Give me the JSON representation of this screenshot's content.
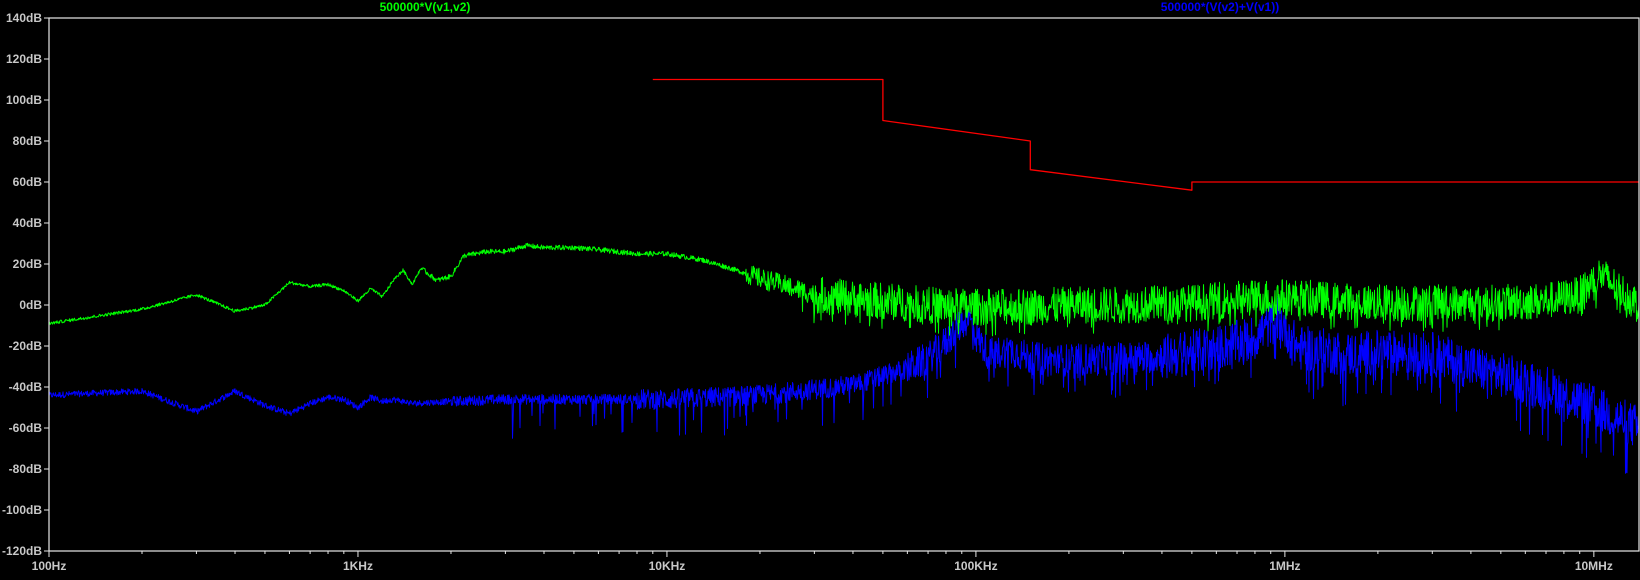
{
  "chart_data": {
    "type": "line",
    "x_scale": "log",
    "x_unit": "Hz",
    "y_unit": "dB",
    "xlim": [
      100,
      14000000
    ],
    "ylim": [
      -120,
      140
    ],
    "x_ticks": [
      {
        "value": 100,
        "label": "100Hz"
      },
      {
        "value": 1000,
        "label": "1KHz"
      },
      {
        "value": 10000,
        "label": "10KHz"
      },
      {
        "value": 100000,
        "label": "100KHz"
      },
      {
        "value": 1000000,
        "label": "1MHz"
      },
      {
        "value": 10000000,
        "label": "10MHz"
      }
    ],
    "y_ticks": [
      {
        "value": 140,
        "label": "140dB"
      },
      {
        "value": 120,
        "label": "120dB"
      },
      {
        "value": 100,
        "label": "100dB"
      },
      {
        "value": 80,
        "label": "80dB"
      },
      {
        "value": 60,
        "label": "60dB"
      },
      {
        "value": 40,
        "label": "40dB"
      },
      {
        "value": 20,
        "label": "20dB"
      },
      {
        "value": 0,
        "label": "0dB"
      },
      {
        "value": -20,
        "label": "-20dB"
      },
      {
        "value": -40,
        "label": "-40dB"
      },
      {
        "value": -60,
        "label": "-60dB"
      },
      {
        "value": -80,
        "label": "-80dB"
      },
      {
        "value": -100,
        "label": "-100dB"
      },
      {
        "value": -120,
        "label": "-120dB"
      }
    ],
    "grid": false,
    "series": [
      {
        "name": "500000*V(v1,v2)",
        "color": "#00ff00",
        "legend_position": "top-left",
        "x": [
          100,
          200,
          300,
          400,
          500,
          600,
          700,
          800,
          900,
          1000,
          1100,
          1200,
          1300,
          1400,
          1500,
          1600,
          1800,
          2000,
          2200,
          2400,
          2600,
          3000,
          3500,
          4000,
          5000,
          6000,
          8000,
          10000,
          13000,
          16000,
          20000,
          25000,
          30000,
          40000,
          50000,
          70000,
          100000,
          150000,
          200000,
          300000,
          500000,
          700000,
          1000000,
          1500000,
          2000000,
          3000000,
          5000000,
          7000000,
          9000000,
          10500000,
          12000000,
          14000000
        ],
        "values": [
          -9,
          -2,
          5,
          -3,
          0,
          11,
          9,
          10,
          7,
          2,
          8,
          4,
          12,
          17,
          10,
          18,
          12,
          14,
          24,
          25,
          26,
          26,
          29,
          28,
          28,
          27,
          25,
          25,
          22,
          18,
          13,
          9,
          5,
          3,
          2,
          0,
          -1,
          -1,
          0,
          0,
          1,
          3,
          4,
          2,
          1,
          1,
          1,
          2,
          5,
          15,
          8,
          0
        ]
      },
      {
        "name": "500000*(V(v2)+V(v1))",
        "color": "#0000ff",
        "legend_position": "top-right",
        "x": [
          100,
          200,
          300,
          400,
          500,
          600,
          700,
          800,
          900,
          1000,
          1100,
          1200,
          1300,
          1500,
          2000,
          3000,
          5000,
          10000,
          20000,
          40000,
          60000,
          70000,
          80000,
          90000,
          95000,
          100000,
          110000,
          130000,
          150000,
          200000,
          300000,
          400000,
          500000,
          600000,
          800000,
          950000,
          1000000,
          1100000,
          1300000,
          1600000,
          2000000,
          3000000,
          4000000,
          5000000,
          7000000,
          10000000,
          14000000
        ],
        "values": [
          -44,
          -42,
          -52,
          -42,
          -49,
          -53,
          -48,
          -45,
          -46,
          -50,
          -45,
          -47,
          -46,
          -48,
          -47,
          -46,
          -46,
          -46,
          -44,
          -39,
          -31,
          -26,
          -18,
          -9,
          -6,
          -15,
          -24,
          -22,
          -26,
          -27,
          -26,
          -25,
          -23,
          -21,
          -16,
          -6,
          -11,
          -21,
          -22,
          -24,
          -23,
          -24,
          -30,
          -34,
          -40,
          -50,
          -60
        ]
      },
      {
        "name": "",
        "color": "#ff0000",
        "legend_position": "",
        "x": [
          9000,
          50000,
          50000,
          150000,
          150000,
          500000,
          500000,
          14000000
        ],
        "values": [
          110,
          110,
          90,
          80,
          66,
          56,
          60,
          60
        ]
      }
    ]
  }
}
